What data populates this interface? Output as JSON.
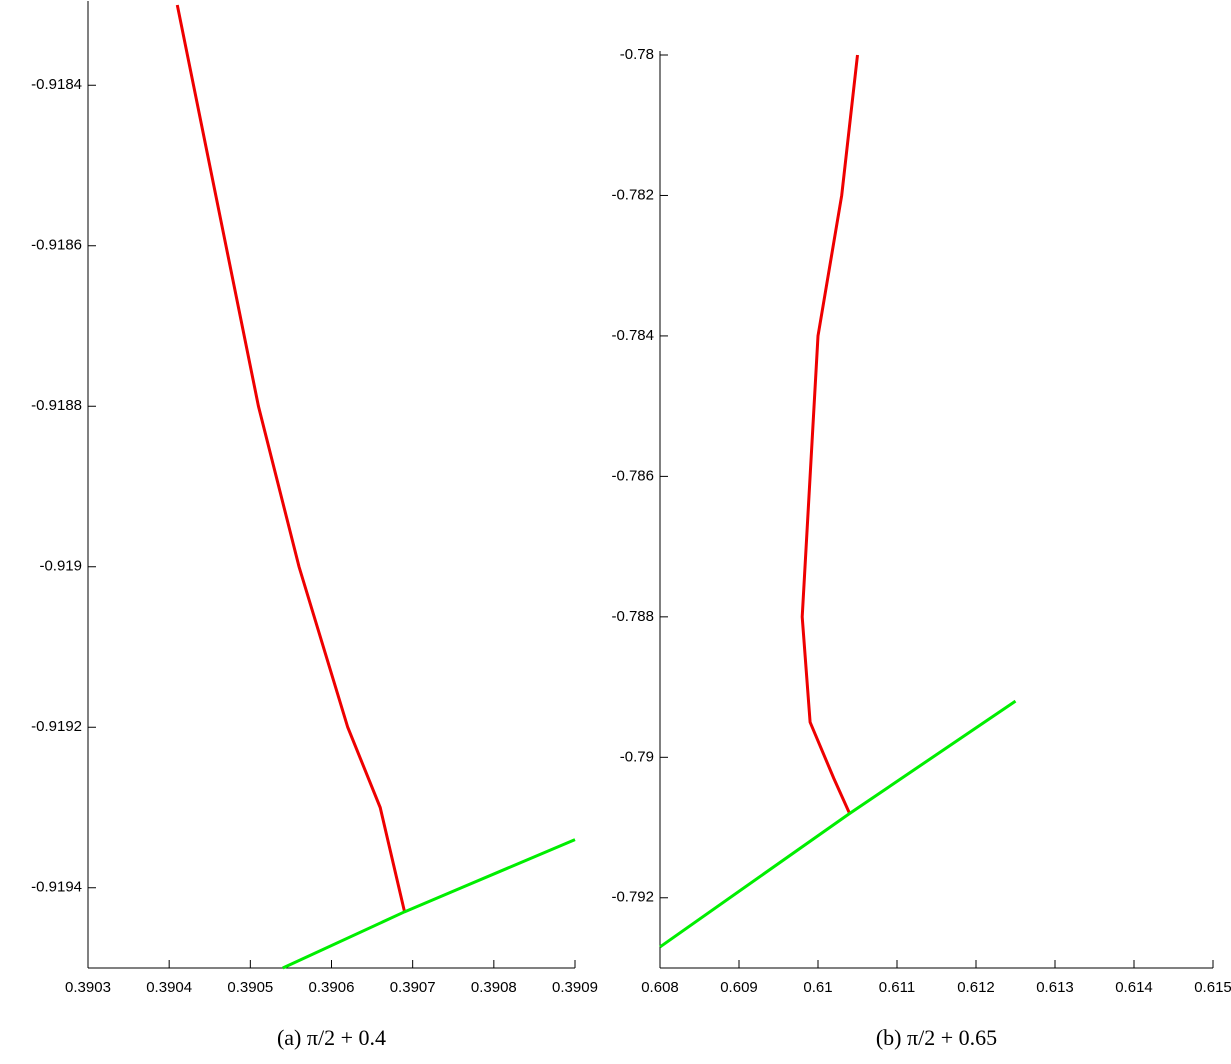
{
  "chart_data": [
    {
      "type": "line",
      "caption": "(a) π/2 + 0.4",
      "xlim": [
        0.3903,
        0.3909
      ],
      "ylim": [
        -0.9195,
        -0.9183
      ],
      "xticks": [
        0.3903,
        0.3904,
        0.3905,
        0.3906,
        0.3907,
        0.3908,
        0.3909
      ],
      "yticks": [
        -0.9184,
        -0.9186,
        -0.9188,
        -0.919,
        -0.9192,
        -0.9194
      ],
      "series": [
        {
          "color": "#ee0000",
          "x": [
            0.39041,
            0.39043,
            0.39047,
            0.39051,
            0.39056,
            0.39062,
            0.39066,
            0.39069
          ],
          "values": [
            -0.9183,
            -0.9184,
            -0.9186,
            -0.9188,
            -0.919,
            -0.9192,
            -0.9193,
            -0.91943
          ]
        },
        {
          "color": "#00ee00",
          "x": [
            0.39054,
            0.39069,
            0.3909
          ],
          "values": [
            -0.9195,
            -0.91943,
            -0.91934
          ]
        }
      ]
    },
    {
      "type": "line",
      "caption": "(b) π/2 + 0.65",
      "xlim": [
        0.608,
        0.615
      ],
      "ylim": [
        -0.793,
        -0.78
      ],
      "xticks": [
        0.608,
        0.609,
        0.61,
        0.611,
        0.612,
        0.613,
        0.614,
        0.615
      ],
      "yticks": [
        -0.78,
        -0.782,
        -0.784,
        -0.786,
        -0.788,
        -0.79,
        -0.792
      ],
      "series": [
        {
          "color": "#ee0000",
          "x": [
            0.6105,
            0.6103,
            0.61,
            0.6099,
            0.6098,
            0.6099,
            0.6102,
            0.6104
          ],
          "values": [
            -0.78,
            -0.782,
            -0.784,
            -0.786,
            -0.788,
            -0.7895,
            -0.7903,
            -0.7908
          ]
        },
        {
          "color": "#00ee00",
          "x": [
            0.608,
            0.6104,
            0.6125
          ],
          "values": [
            -0.7927,
            -0.7908,
            -0.7892
          ]
        }
      ]
    }
  ]
}
